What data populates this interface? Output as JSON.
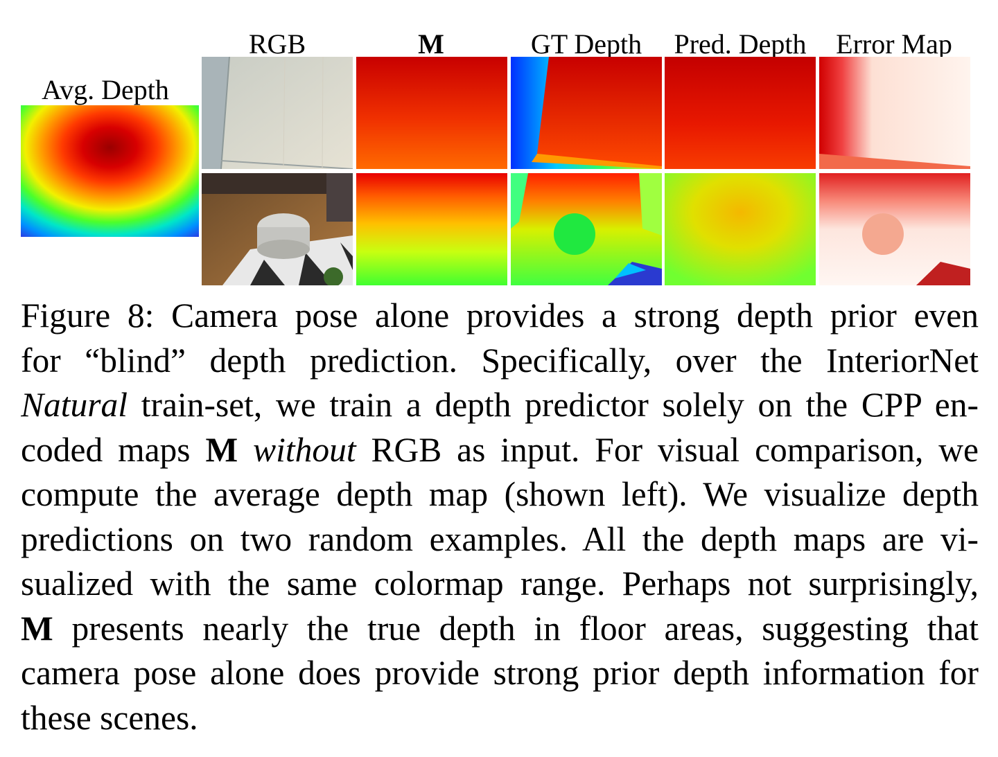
{
  "figure": {
    "labels": {
      "avg_depth": "Avg. Depth",
      "rgb": "RGB",
      "m": "M",
      "gt_depth": "GT Depth",
      "pred_depth": "Pred. Depth",
      "error_map": "Error Map"
    },
    "colormap": "jet",
    "rows": 2
  },
  "caption": {
    "figure_number": "Figure 8:",
    "lines": [
      {
        "parts": [
          {
            "t": "Camera pose alone provides a strong depth prior even"
          }
        ]
      },
      {
        "parts": [
          {
            "t": "for “blind” depth prediction.  Specifically, over the InteriorNet"
          }
        ]
      },
      {
        "parts": [
          {
            "t": "Natural",
            "style": "i"
          },
          {
            "t": " train-set, we train a depth predictor solely on the CPP en-"
          }
        ]
      },
      {
        "parts": [
          {
            "t": "coded maps "
          },
          {
            "t": "M",
            "style": "b"
          },
          {
            "t": " "
          },
          {
            "t": "without",
            "style": "i"
          },
          {
            "t": " RGB as input. For visual comparison, we"
          }
        ]
      },
      {
        "parts": [
          {
            "t": "compute the average depth map (shown left). We visualize depth"
          }
        ]
      },
      {
        "parts": [
          {
            "t": "predictions on two random examples.  All the depth maps are vi-"
          }
        ]
      },
      {
        "parts": [
          {
            "t": "sualized with the same colormap range. Perhaps not surprisingly,"
          }
        ]
      },
      {
        "parts": [
          {
            "t": "M",
            "style": "b"
          },
          {
            "t": " presents nearly the true depth in floor areas, suggesting that"
          }
        ]
      },
      {
        "parts": [
          {
            "t": "camera pose alone does provide strong prior depth information for"
          }
        ]
      },
      {
        "parts": [
          {
            "t": "these scenes."
          }
        ]
      }
    ]
  }
}
